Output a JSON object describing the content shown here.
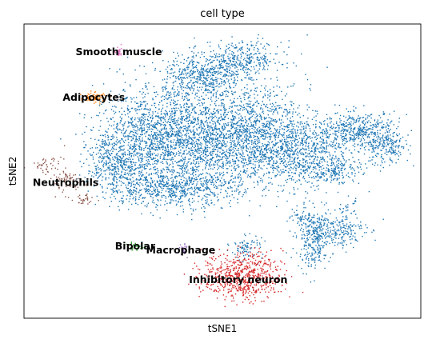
{
  "chart_data": {
    "type": "scatter",
    "title": "cell type",
    "xlabel": "tSNE1",
    "ylabel": "tSNE2",
    "ticks": "none",
    "grid": false,
    "legend": "on data",
    "xlim": [
      0,
      100
    ],
    "ylim": [
      0,
      100
    ],
    "series": [
      {
        "name": "Smooth muscle",
        "color": "#e377c2",
        "clusters": [
          {
            "cx": 23.9,
            "cy": 90.3,
            "sx": 0.4,
            "sy": 1.0,
            "n": 35
          }
        ]
      },
      {
        "name": "Adipocytes",
        "color": "#ff7f0e",
        "clusters": [
          {
            "cx": 17.6,
            "cy": 74.9,
            "sx": 1.8,
            "sy": 0.9,
            "n": 80
          }
        ]
      },
      {
        "name": "Neutrophils",
        "color": "#8c564b",
        "clusters": [
          {
            "cx": 6.0,
            "cy": 52.2,
            "sx": 2.2,
            "sy": 1.5,
            "n": 45
          },
          {
            "cx": 10.8,
            "cy": 46.5,
            "sx": 2.2,
            "sy": 1.9,
            "n": 70
          },
          {
            "cx": 14.9,
            "cy": 40.2,
            "sx": 1.5,
            "sy": 0.8,
            "n": 30
          }
        ]
      },
      {
        "name": "Bipolar",
        "color": "#2ca02c",
        "clusters": [
          {
            "cx": 28.0,
            "cy": 24.3,
            "sx": 0.9,
            "sy": 0.6,
            "n": 30
          }
        ]
      },
      {
        "name": "Macrophage",
        "color": "#9467bd",
        "clusters": [
          {
            "cx": 40.2,
            "cy": 23.5,
            "sx": 0.6,
            "sy": 1.3,
            "n": 25
          }
        ]
      },
      {
        "name": "Inhibitory neuron",
        "color": "#d62728",
        "clusters": [
          {
            "cx": 55.1,
            "cy": 14.2,
            "sx": 5.0,
            "sy": 4.0,
            "n": 650
          }
        ]
      },
      {
        "name": "",
        "color": "#1f77b4",
        "clusters": [
          {
            "cx": 32.0,
            "cy": 62.0,
            "sx": 7.0,
            "sy": 8.0,
            "n": 1100
          },
          {
            "cx": 45.0,
            "cy": 60.0,
            "sx": 8.0,
            "sy": 9.0,
            "n": 1300
          },
          {
            "cx": 58.0,
            "cy": 62.0,
            "sx": 7.0,
            "sy": 8.0,
            "n": 1100
          },
          {
            "cx": 70.0,
            "cy": 56.0,
            "sx": 6.0,
            "sy": 6.0,
            "n": 700
          },
          {
            "cx": 45.0,
            "cy": 82.0,
            "sx": 5.0,
            "sy": 4.0,
            "n": 500
          },
          {
            "cx": 55.0,
            "cy": 88.0,
            "sx": 5.0,
            "sy": 3.0,
            "n": 350
          },
          {
            "cx": 23.0,
            "cy": 52.0,
            "sx": 3.5,
            "sy": 5.0,
            "n": 400
          },
          {
            "cx": 37.0,
            "cy": 44.0,
            "sx": 8.0,
            "sy": 3.0,
            "n": 600
          },
          {
            "cx": 84.0,
            "cy": 64.0,
            "sx": 5.0,
            "sy": 3.0,
            "n": 450
          },
          {
            "cx": 91.0,
            "cy": 58.0,
            "sx": 3.0,
            "sy": 3.0,
            "n": 220
          },
          {
            "cx": 79.0,
            "cy": 50.0,
            "sx": 3.0,
            "sy": 2.0,
            "n": 130
          },
          {
            "cx": 73.0,
            "cy": 27.0,
            "sx": 2.2,
            "sy": 5.0,
            "n": 300
          },
          {
            "cx": 79.0,
            "cy": 30.0,
            "sx": 3.5,
            "sy": 3.0,
            "n": 220
          },
          {
            "cx": 69.5,
            "cy": 34.0,
            "sx": 1.2,
            "sy": 1.0,
            "n": 30
          },
          {
            "cx": 81.5,
            "cy": 38.0,
            "sx": 1.0,
            "sy": 1.5,
            "n": 25
          },
          {
            "cx": 56.0,
            "cy": 24.0,
            "sx": 2.0,
            "sy": 2.0,
            "n": 80
          }
        ]
      }
    ],
    "annotations": [
      {
        "text": "Smooth muscle",
        "x": 23.9,
        "y": 90.3
      },
      {
        "text": "Adipocytes",
        "x": 17.6,
        "y": 74.9
      },
      {
        "text": "Neutrophils",
        "x": 10.5,
        "y": 45.9
      },
      {
        "text": "Bipolar",
        "x": 28.0,
        "y": 24.3
      },
      {
        "text": "Macrophage",
        "x": 39.5,
        "y": 23.0
      },
      {
        "text": "Inhibitory neuron",
        "x": 54.0,
        "y": 12.9
      }
    ]
  }
}
